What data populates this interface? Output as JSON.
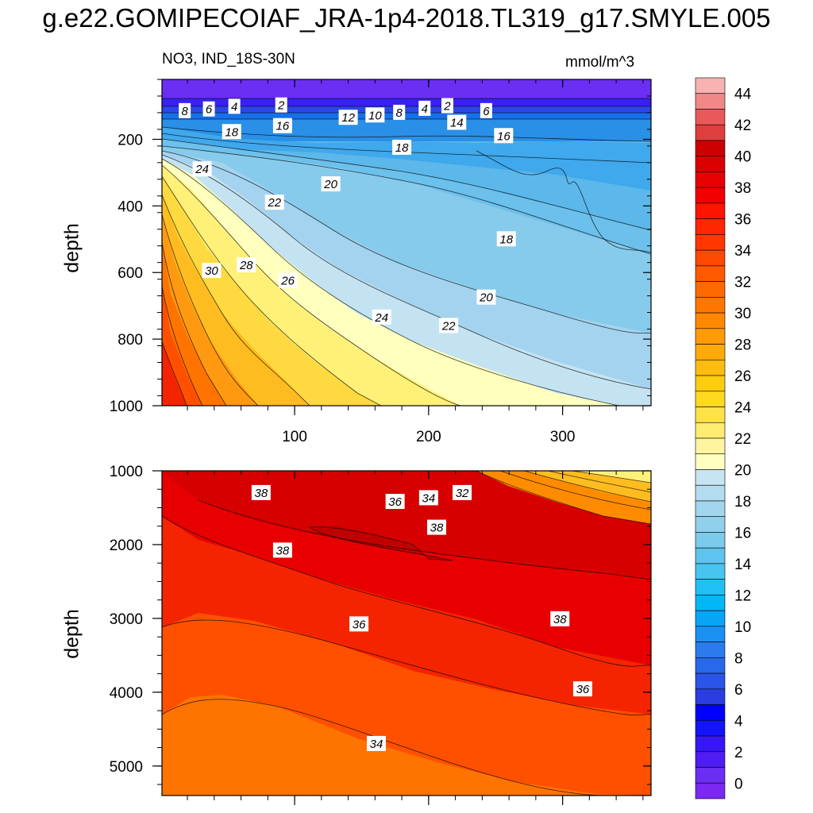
{
  "title": "g.e22.GOMIPECOIAF_JRA-1p4-2018.TL319_g17.SMYLE.005",
  "subtitle_left": "NO3, IND_18S-30N",
  "subtitle_right": "mmol/m^3",
  "chart_data": [
    {
      "type": "contour",
      "panel": "upper",
      "variable": "NO3",
      "region": "IND_18S-30N",
      "units": "mmol/m^3",
      "xlabel": "",
      "ylabel": "depth",
      "x_ticks": [
        100,
        200,
        300
      ],
      "y_ticks": [
        200,
        400,
        600,
        800,
        1000
      ],
      "xlim": [
        1,
        366
      ],
      "ylim": [
        1000,
        20
      ],
      "contour_labels": [
        {
          "x": 18,
          "y": 115,
          "value": "8"
        },
        {
          "x": 36,
          "y": 110,
          "value": "6"
        },
        {
          "x": 55,
          "y": 102,
          "value": "4"
        },
        {
          "x": 90,
          "y": 98,
          "value": "2"
        },
        {
          "x": 140,
          "y": 135,
          "value": "12"
        },
        {
          "x": 160,
          "y": 128,
          "value": "10"
        },
        {
          "x": 178,
          "y": 120,
          "value": "8"
        },
        {
          "x": 197,
          "y": 108,
          "value": "4"
        },
        {
          "x": 214,
          "y": 100,
          "value": "2"
        },
        {
          "x": 243,
          "y": 115,
          "value": "6"
        },
        {
          "x": 53,
          "y": 178,
          "value": "18"
        },
        {
          "x": 91,
          "y": 160,
          "value": "16"
        },
        {
          "x": 221,
          "y": 150,
          "value": "14"
        },
        {
          "x": 256,
          "y": 190,
          "value": "16"
        },
        {
          "x": 180,
          "y": 225,
          "value": "18"
        },
        {
          "x": 31,
          "y": 290,
          "value": "24"
        },
        {
          "x": 85,
          "y": 390,
          "value": "22"
        },
        {
          "x": 127,
          "y": 335,
          "value": "20"
        },
        {
          "x": 258,
          "y": 500,
          "value": "18"
        },
        {
          "x": 38,
          "y": 595,
          "value": "30"
        },
        {
          "x": 64,
          "y": 578,
          "value": "28"
        },
        {
          "x": 95,
          "y": 625,
          "value": "26"
        },
        {
          "x": 165,
          "y": 735,
          "value": "24"
        },
        {
          "x": 215,
          "y": 760,
          "value": "22"
        },
        {
          "x": 243,
          "y": 675,
          "value": "20"
        }
      ]
    },
    {
      "type": "contour",
      "panel": "lower",
      "variable": "NO3",
      "units": "mmol/m^3",
      "xlabel": "",
      "ylabel": "depth",
      "x_ticks": [
        100,
        200,
        300
      ],
      "y_ticks": [
        1000,
        2000,
        3000,
        4000,
        5000
      ],
      "xlim": [
        1,
        366
      ],
      "ylim": [
        5400,
        1000
      ],
      "contour_labels": [
        {
          "x": 75,
          "y": 1300,
          "value": "38"
        },
        {
          "x": 175,
          "y": 1420,
          "value": "36"
        },
        {
          "x": 200,
          "y": 1370,
          "value": "34"
        },
        {
          "x": 225,
          "y": 1300,
          "value": "32"
        },
        {
          "x": 206,
          "y": 1770,
          "value": "38"
        },
        {
          "x": 91,
          "y": 2080,
          "value": "38"
        },
        {
          "x": 148,
          "y": 3080,
          "value": "36"
        },
        {
          "x": 298,
          "y": 3010,
          "value": "38"
        },
        {
          "x": 315,
          "y": 3960,
          "value": "36"
        },
        {
          "x": 161,
          "y": 4700,
          "value": "34"
        }
      ]
    },
    {
      "type": "colorbar",
      "levels": [
        0,
        2,
        4,
        6,
        8,
        10,
        12,
        14,
        16,
        18,
        20,
        22,
        24,
        26,
        28,
        30,
        32,
        34,
        36,
        38,
        40,
        42,
        44
      ],
      "tick_labels": [
        "0",
        "2",
        "4",
        "6",
        "8",
        "10",
        "12",
        "14",
        "16",
        "18",
        "20",
        "22",
        "24",
        "26",
        "28",
        "30",
        "32",
        "34",
        "36",
        "38",
        "40",
        "42",
        "44"
      ]
    }
  ]
}
